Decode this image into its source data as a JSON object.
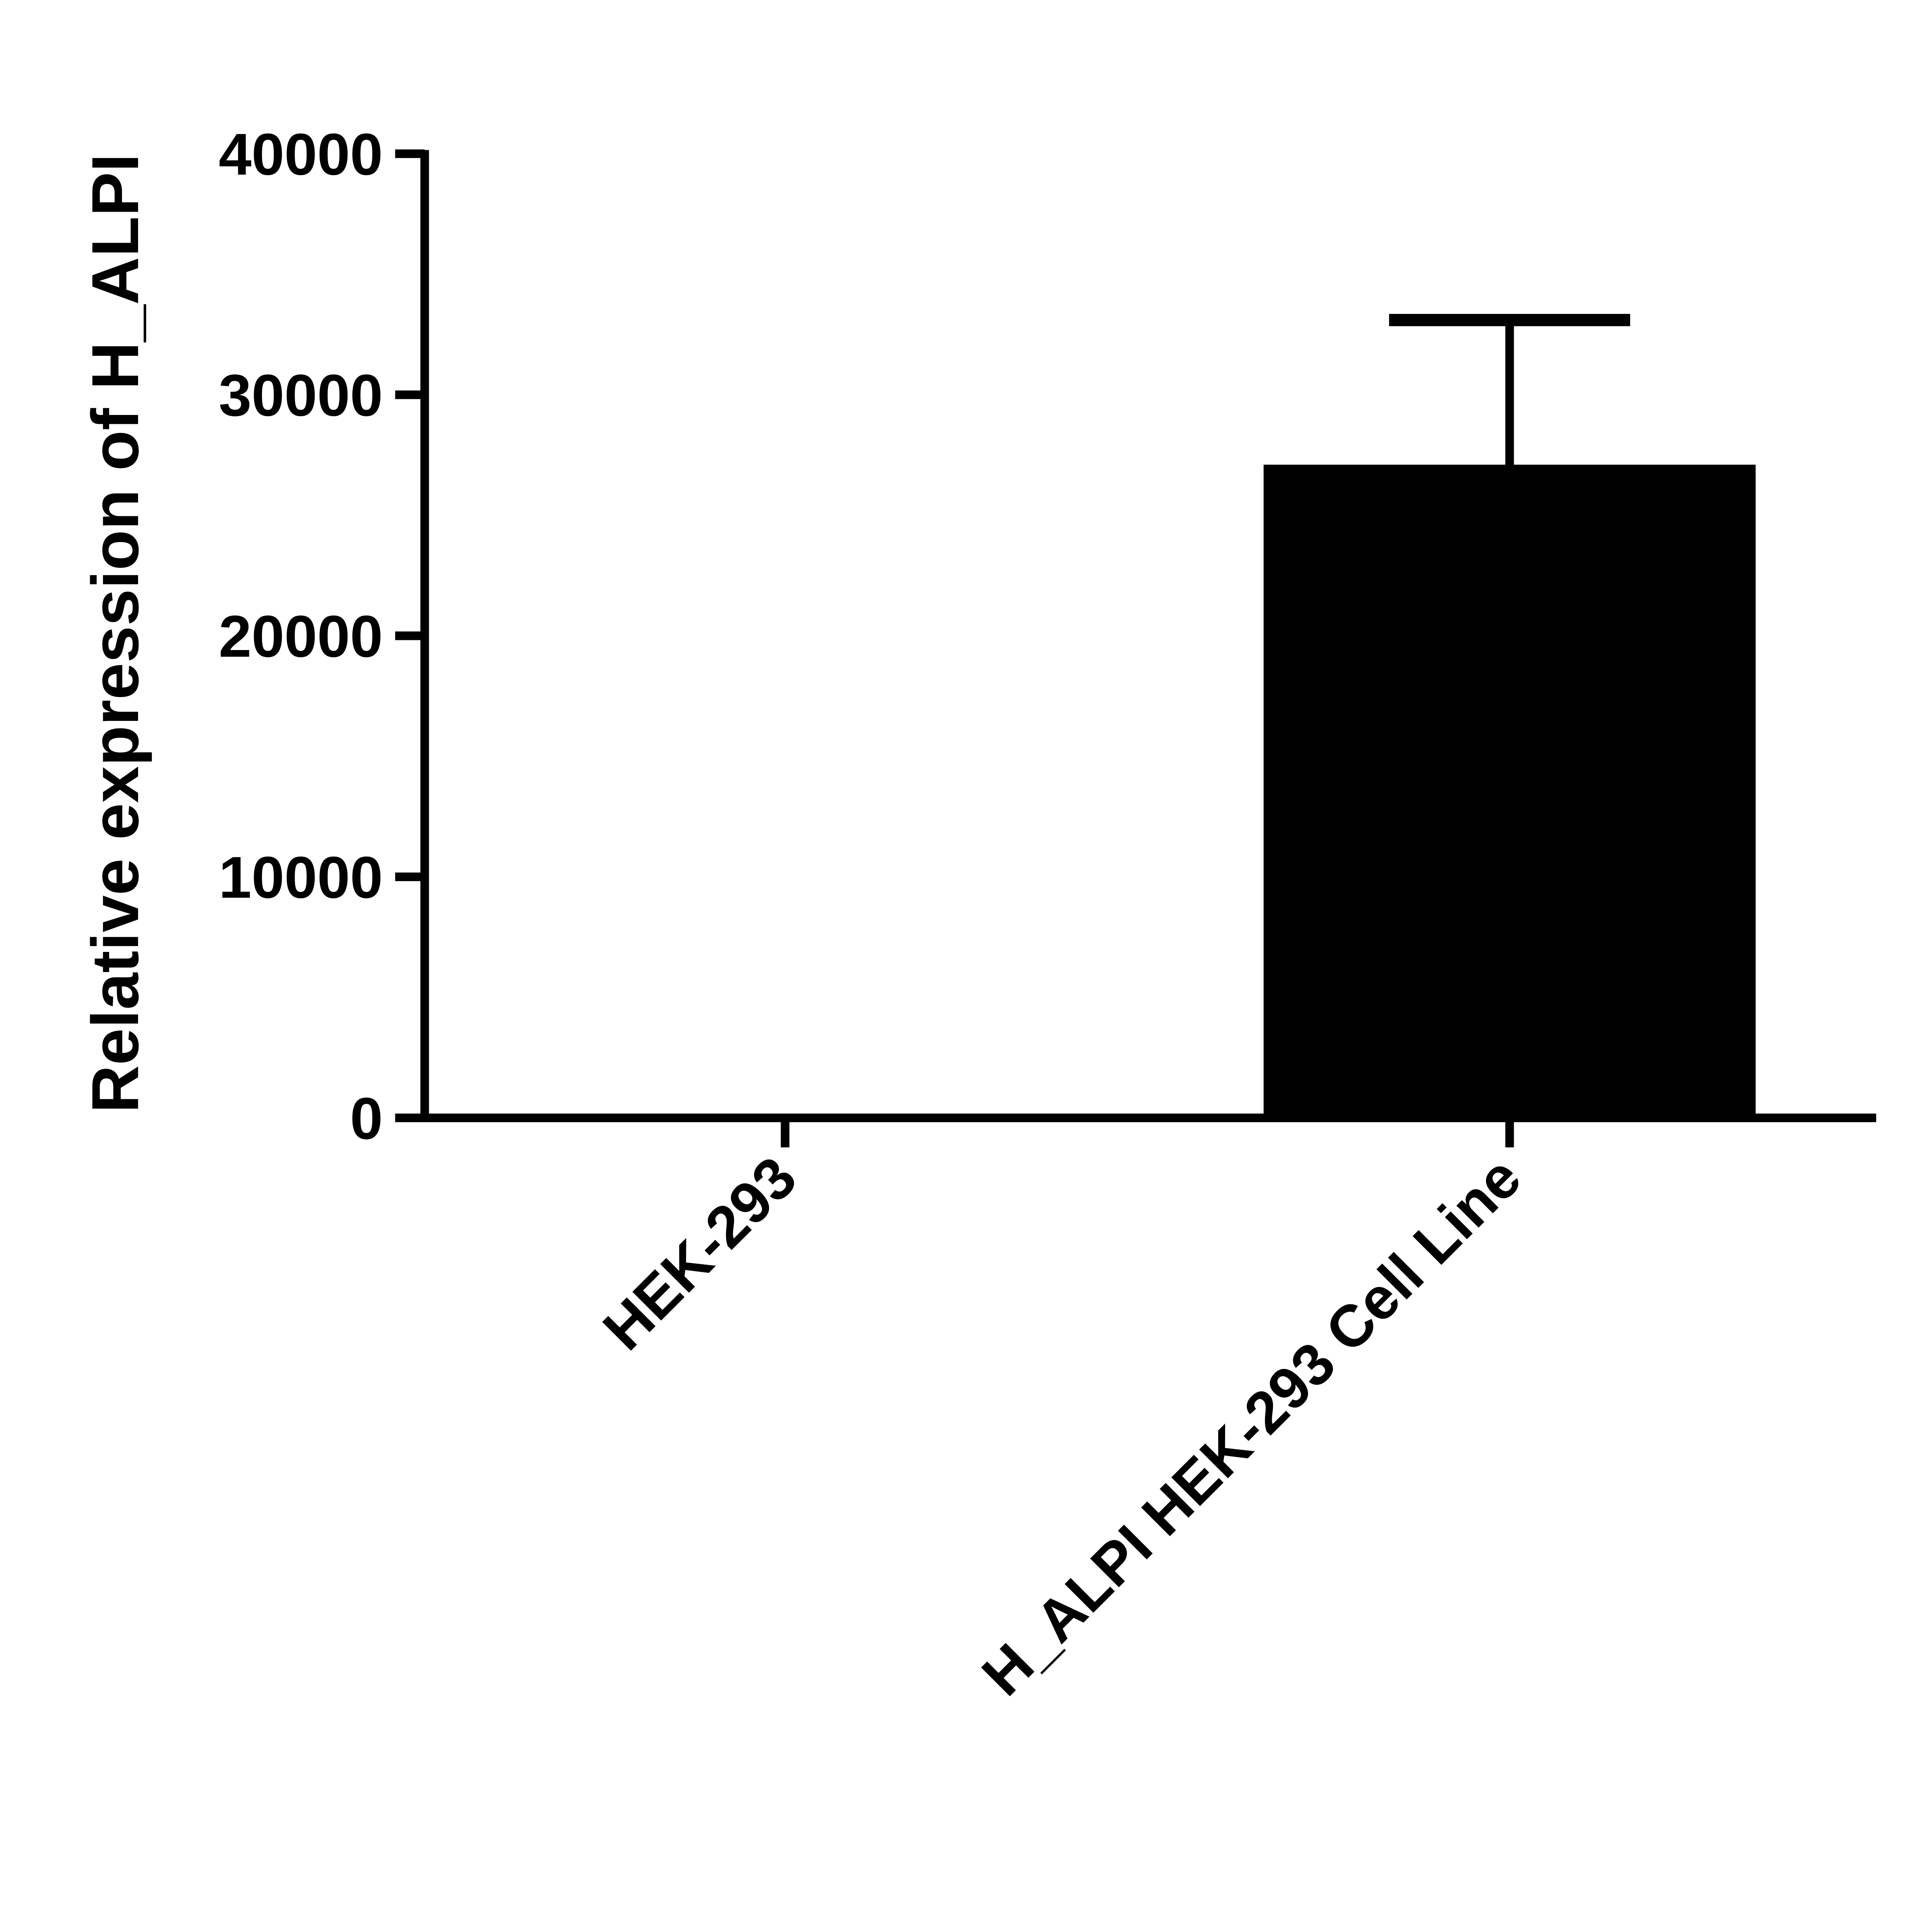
{
  "chart_data": {
    "type": "bar",
    "y_label": "Relative expression of H_ALPI",
    "categories": [
      "HEK-293",
      "H_ALPI HEK-293 Cell Line"
    ],
    "values": [
      0,
      27100
    ],
    "errors": [
      0,
      6000
    ],
    "color": "#000000",
    "ylim": [
      0,
      40000
    ],
    "yticks": [
      0,
      10000,
      20000,
      30000,
      40000
    ]
  }
}
